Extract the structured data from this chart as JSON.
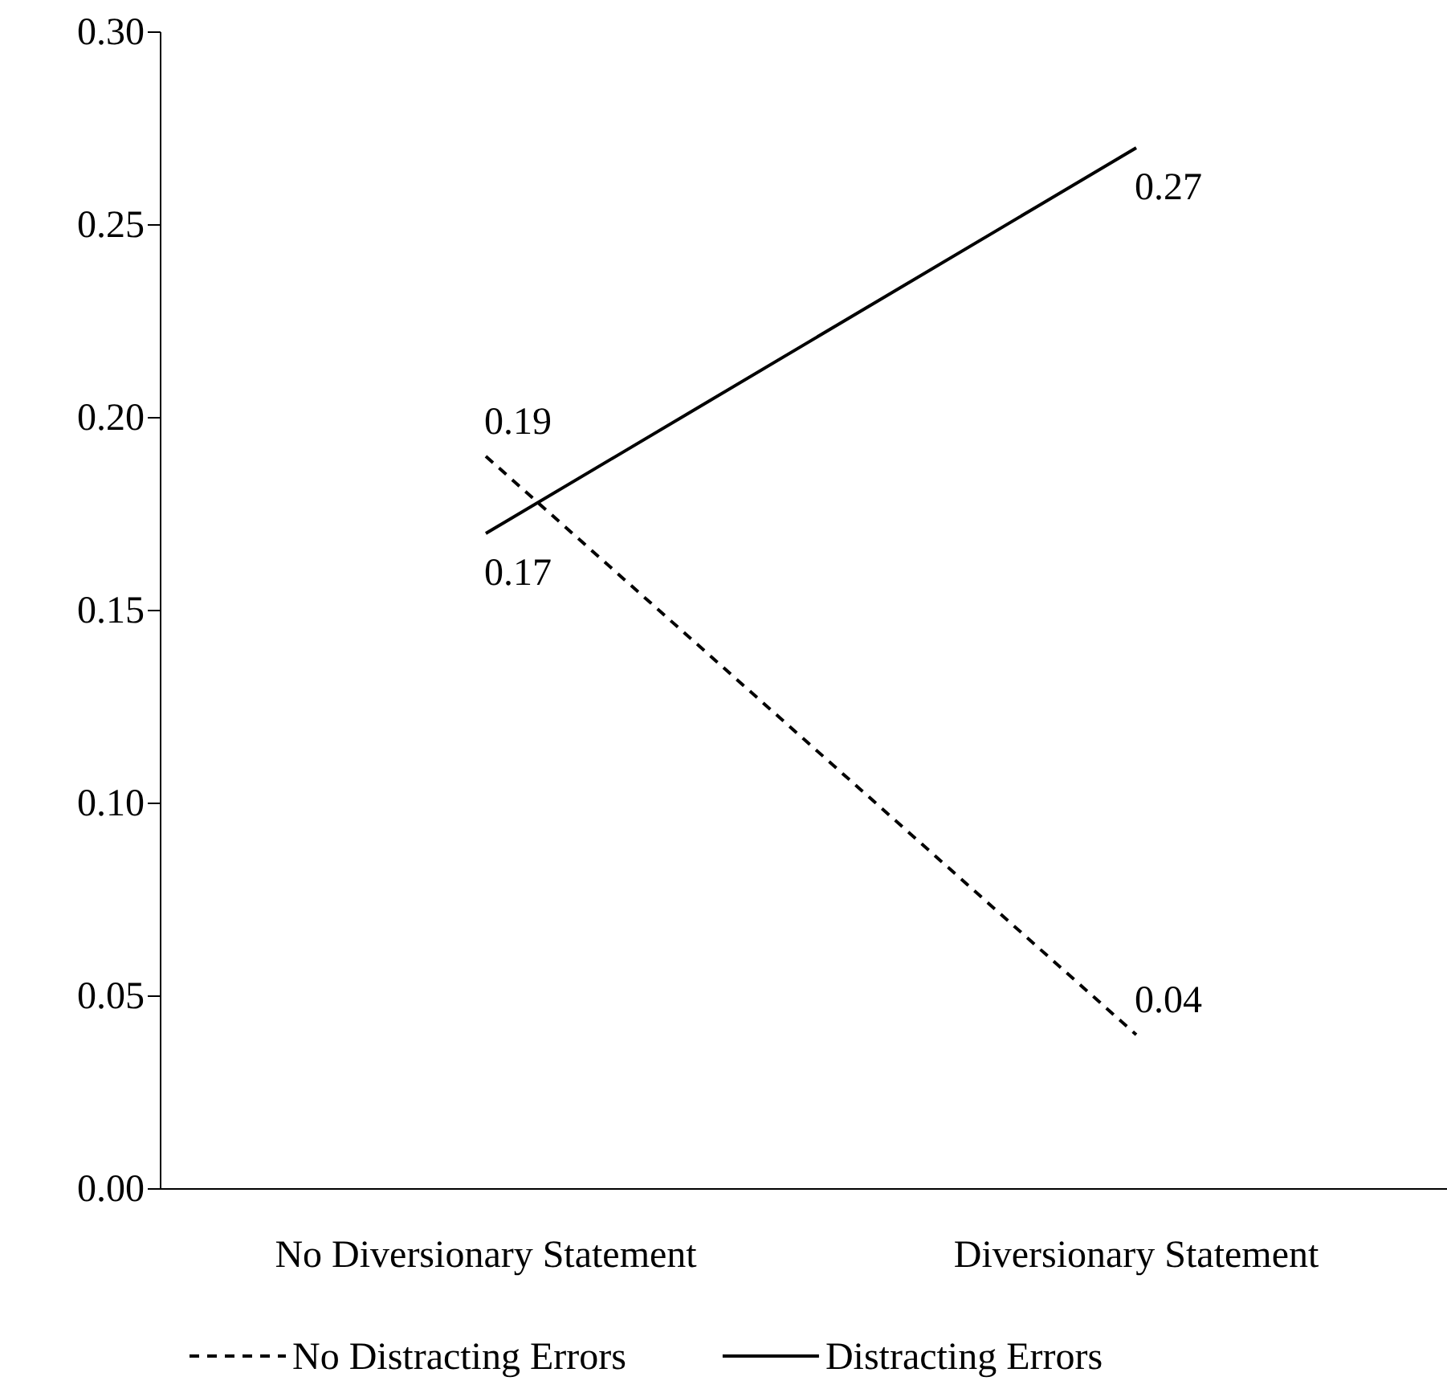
{
  "chart_data": {
    "type": "line",
    "categories": [
      "No Diversionary Statement",
      "Diversionary Statement"
    ],
    "series": [
      {
        "name": "No Distracting Errors",
        "color": "#000000",
        "line_style": "dashed",
        "values": [
          0.19,
          0.04
        ]
      },
      {
        "name": "Distracting Errors",
        "color": "#000000",
        "line_style": "solid",
        "values": [
          0.17,
          0.27
        ]
      }
    ],
    "ylim": [
      0,
      0.3
    ],
    "yticks": [
      {
        "value": 0,
        "label": "0.00"
      },
      {
        "value": 0.05,
        "label": "0.05"
      },
      {
        "value": 0.1,
        "label": "0.10"
      },
      {
        "value": 0.15,
        "label": "0.15"
      },
      {
        "value": 0.2,
        "label": "0.20"
      },
      {
        "value": 0.25,
        "label": "0.25"
      },
      {
        "value": 0.3,
        "label": "0.30"
      }
    ],
    "data_labels": true,
    "legend": "bottom",
    "grid": false,
    "marker": "none"
  }
}
